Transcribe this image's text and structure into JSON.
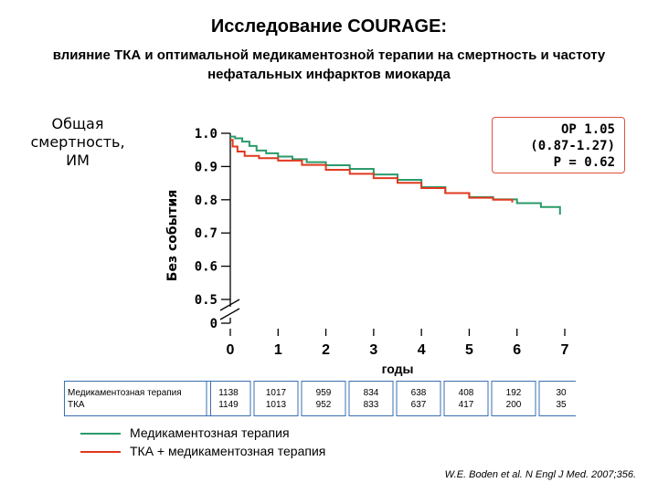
{
  "title": "Исследование COURAGE:",
  "subtitle": "влияние ТКА и оптимальной медикаментозной терапии на смертность и частоту нефатальных инфарктов миокарда",
  "side_label": "Общая смертность, ИМ",
  "stats": {
    "line1": "ОР 1.05",
    "line2": "(0.87-1.27)",
    "line3": "P = 0.62"
  },
  "colors": {
    "med": "#2a9a6a",
    "pci": "#e0391e",
    "axis": "#000000"
  },
  "chart_data": {
    "type": "line",
    "xlabel": "годы",
    "ylabel": "Без события",
    "x_ticks": [
      "0",
      "1",
      "2",
      "3",
      "4",
      "5",
      "6",
      "7"
    ],
    "y_ticks": [
      "0",
      "0.5",
      "0.6",
      "0.7",
      "0.8",
      "0.9",
      "1.0"
    ],
    "xlim": [
      0,
      7
    ],
    "ylim": [
      0.5,
      1.0
    ],
    "axis_break": true,
    "series": [
      {
        "name": "Медикаментозная терапия",
        "color_key": "med",
        "x": [
          0,
          0.1,
          0.25,
          0.4,
          0.55,
          0.75,
          1.0,
          1.3,
          1.6,
          2.0,
          2.5,
          3.0,
          3.5,
          4.0,
          4.5,
          5.0,
          5.5,
          6.0,
          6.5,
          6.9,
          6.9
        ],
        "y": [
          0.99,
          0.985,
          0.975,
          0.962,
          0.948,
          0.94,
          0.93,
          0.922,
          0.913,
          0.904,
          0.893,
          0.876,
          0.86,
          0.838,
          0.82,
          0.808,
          0.801,
          0.79,
          0.778,
          0.773,
          0.755
        ]
      },
      {
        "name": "ТКА + медикаментозная терапия",
        "color_key": "pci",
        "x": [
          0,
          0.05,
          0.15,
          0.3,
          0.6,
          1.0,
          1.5,
          2.0,
          2.5,
          3.0,
          3.5,
          4.0,
          4.5,
          5.0,
          5.5,
          5.9
        ],
        "y": [
          0.98,
          0.96,
          0.945,
          0.932,
          0.925,
          0.918,
          0.905,
          0.89,
          0.878,
          0.865,
          0.851,
          0.835,
          0.82,
          0.806,
          0.8,
          0.792
        ]
      }
    ]
  },
  "risk_table": {
    "row_labels": [
      "Медикаментозная терапия",
      "ТКА"
    ],
    "columns": [
      [
        "1138",
        "1149"
      ],
      [
        "1017",
        "1013"
      ],
      [
        "959",
        "952"
      ],
      [
        "834",
        "833"
      ],
      [
        "638",
        "637"
      ],
      [
        "408",
        "417"
      ],
      [
        "192",
        "200"
      ],
      [
        "30",
        "35"
      ]
    ]
  },
  "legend": [
    {
      "label": "Медикаментозная терапия",
      "color_key": "med"
    },
    {
      "label": "ТКА + медикаментозная терапия",
      "color_key": "pci"
    }
  ],
  "citation": "W.E. Boden et al. N Engl J Med. 2007;356."
}
